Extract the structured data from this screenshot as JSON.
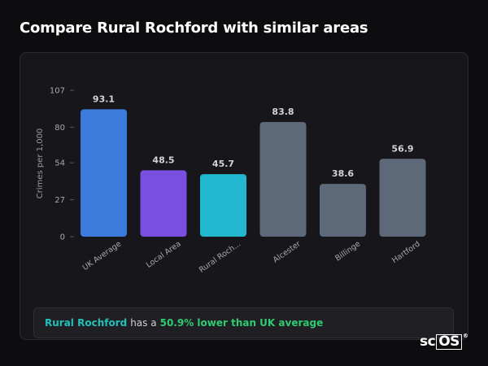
{
  "page": {
    "title": "Compare Rural Rochford with similar areas"
  },
  "chart_data": {
    "type": "bar",
    "ylabel": "Crimes per 1,000",
    "ylim": [
      0,
      107
    ],
    "yticks": [
      0,
      27,
      54,
      80,
      107
    ],
    "grid": false,
    "categories": [
      "UK Average",
      "Local Area",
      "Rural Rochford",
      "Alcester",
      "Billinge",
      "Hartford"
    ],
    "tick_labels": [
      "UK Average",
      "Local Area",
      "Rural Roch...",
      "Alcester",
      "Billinge",
      "Hartford"
    ],
    "values": [
      93.1,
      48.5,
      45.7,
      83.8,
      38.6,
      56.9
    ],
    "value_labels": [
      "93.1",
      "48.5",
      "45.7",
      "83.8",
      "38.6",
      "56.9"
    ],
    "colors": [
      "#3a7bdc",
      "#7a4ee0",
      "#21b8d0",
      "#5d6878",
      "#5d6878",
      "#5d6878"
    ]
  },
  "summary": {
    "name": "Rural Rochford",
    "middle": "has a",
    "stat": "50.9% lower than UK average"
  },
  "logo": {
    "prefix": "sc",
    "boxed": "OS",
    "mark": "®"
  }
}
